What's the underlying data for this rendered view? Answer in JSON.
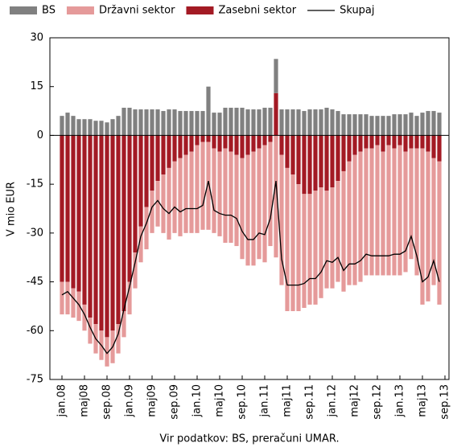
{
  "chart_data": {
    "type": "bar",
    "source": "Vir podatkov: BS, preračuni UMAR.",
    "y_label": "V mio EUR",
    "ylim": [
      -75,
      30
    ],
    "yticks": [
      -75,
      -60,
      -45,
      -30,
      -15,
      0,
      15,
      30
    ],
    "grid": false,
    "stacked": true,
    "legend": "top",
    "categories": [
      "jan.08",
      null,
      null,
      null,
      "maj08",
      null,
      null,
      null,
      "sep.08",
      null,
      null,
      null,
      "jan.09",
      null,
      null,
      null,
      "maj09",
      null,
      null,
      null,
      "sep.09",
      null,
      null,
      null,
      "jan.10",
      null,
      null,
      null,
      "maj10",
      null,
      null,
      null,
      "sep.10",
      null,
      null,
      null,
      "jan.11",
      null,
      null,
      null,
      "maj11",
      null,
      null,
      null,
      "sep.11",
      null,
      null,
      null,
      "jan.12",
      null,
      null,
      null,
      "maj12",
      null,
      null,
      null,
      "sep.12",
      null,
      null,
      null,
      "jan.13",
      null,
      null,
      null,
      "maj13",
      null,
      null,
      null,
      "sep.13"
    ],
    "series": [
      {
        "name": "BS",
        "type": "bar",
        "color": "#808080",
        "values": [
          6,
          7,
          6,
          5,
          5,
          5,
          4.5,
          4.5,
          4,
          5,
          6,
          8.5,
          8.5,
          8,
          8,
          8,
          8,
          8,
          7.5,
          8,
          8,
          7.5,
          7.5,
          7.5,
          7.5,
          7.5,
          15,
          7,
          7,
          8.5,
          8.5,
          8.5,
          8.5,
          8,
          8,
          8,
          8.5,
          8.5,
          10.5,
          8,
          8,
          8,
          8,
          7.5,
          8,
          8,
          8,
          8.5,
          8,
          7.5,
          6.5,
          6.5,
          6.5,
          6.5,
          6.5,
          6,
          6,
          6,
          6,
          6.5,
          6.5,
          6.5,
          7,
          6,
          7,
          7.5,
          7.5,
          7,
          null
        ]
      },
      {
        "name": "Državni sektor",
        "type": "bar",
        "color": "#e59a9a",
        "values": [
          -10,
          -10,
          -9,
          -9,
          -8,
          -8,
          -9,
          -9,
          -9,
          -10,
          -9,
          -8,
          -10,
          -11,
          -11,
          -13,
          -13,
          -14,
          -18,
          -22,
          -22,
          -24,
          -24,
          -25,
          -27,
          -27,
          -27,
          -26,
          -26,
          -29,
          -28,
          -28,
          -31,
          -34,
          -35,
          -34,
          -36,
          -32,
          -37.5,
          -40,
          -44,
          -42,
          -39,
          -35,
          -34,
          -35,
          -34,
          -30,
          -31,
          -31,
          -37,
          -38,
          -40,
          -40,
          -39,
          -39,
          -40,
          -38,
          -40,
          -39,
          -40,
          -37,
          -34,
          -39,
          -48,
          -46,
          -39,
          -44,
          null
        ]
      },
      {
        "name": "Zasebni sektor",
        "type": "bar",
        "color": "#a31a24",
        "values": [
          -45,
          -45,
          -47,
          -48,
          -52,
          -56,
          -58,
          -60,
          -62,
          -60,
          -58,
          -54,
          -45,
          -36,
          -28,
          -22,
          -17,
          -14,
          -12,
          -10,
          -8,
          -7,
          -6,
          -5,
          -3,
          -2,
          -2,
          -4,
          -5,
          -4,
          -5,
          -6,
          -7,
          -6,
          -5,
          -4,
          -3,
          -2,
          13,
          -6,
          -10,
          -12,
          -15,
          -18,
          -18,
          -17,
          -16,
          -17,
          -16,
          -14,
          -11,
          -8,
          -6,
          -5,
          -4,
          -4,
          -3,
          -5,
          -3,
          -4,
          -3,
          -5,
          -4,
          -4,
          -4,
          -5,
          -7,
          -8,
          null
        ]
      },
      {
        "name": "Skupaj",
        "type": "line",
        "color": "#000000",
        "values": [
          -49,
          -48,
          -50,
          -52,
          -55,
          -59,
          -62.5,
          -64.5,
          -67,
          -65,
          -61,
          -53.5,
          -46.5,
          -39,
          -31,
          -27,
          -22,
          -20,
          -22.5,
          -24,
          -22,
          -23.5,
          -22.5,
          -22.5,
          -22.5,
          -21.5,
          -14,
          -23,
          -24,
          -24.5,
          -24.5,
          -25.5,
          -29.5,
          -32,
          -32,
          -30,
          -30.5,
          -25.5,
          -14,
          -38,
          -46,
          -46,
          -46,
          -45.5,
          -44,
          -44,
          -42,
          -38.5,
          -39,
          -37.5,
          -41.5,
          -39.5,
          -39.5,
          -38.5,
          -36.5,
          -37,
          -37,
          -37,
          -37,
          -36.5,
          -36.5,
          -35.5,
          -31,
          -37,
          -45,
          -43.5,
          -38.5,
          -45,
          null
        ]
      }
    ]
  }
}
